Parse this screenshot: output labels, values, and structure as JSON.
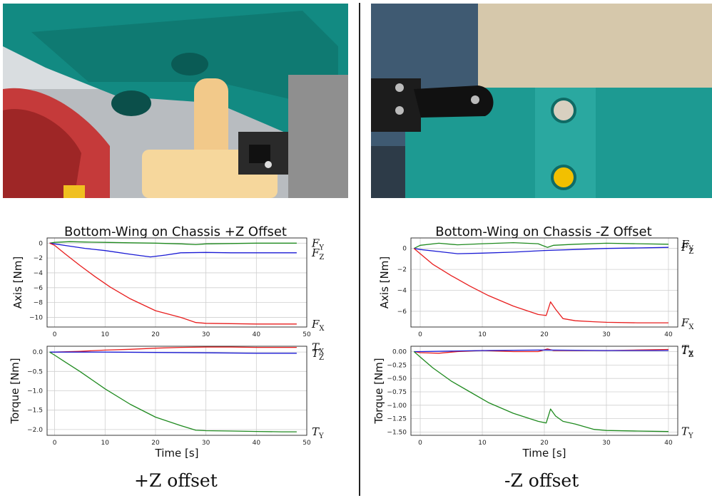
{
  "photos": {
    "left": "robot-gripper-photo-underside",
    "right": "robot-gripper-photo-topdown"
  },
  "captions": {
    "left": "+Z offset",
    "right": "-Z offset"
  },
  "colors": {
    "x": "#e81e1e",
    "y": "#1f8a1f",
    "z": "#1a1ad4",
    "grid": "#cfcfcf"
  },
  "chart_data": [
    {
      "type": "line",
      "title": "Bottom-Wing on Chassis +Z Offset",
      "xlabel": "Time [s]",
      "xlim": [
        -1.5,
        50
      ],
      "xticks": [
        0,
        10,
        20,
        30,
        40,
        50
      ],
      "grid": true,
      "subplots": [
        {
          "ylabel": "Axis [Nm]",
          "ylim": [
            -11.3,
            0.7
          ],
          "yticks": [
            0,
            -2,
            -4,
            -6,
            -8,
            -10
          ],
          "series": [
            {
              "name": "F_Y",
              "color": "green",
              "x": [
                -1,
                0,
                3,
                6,
                10,
                15,
                20,
                25,
                28,
                30,
                35,
                40,
                45,
                48
              ],
              "y": [
                0,
                0.1,
                0.2,
                0.15,
                0.1,
                0.05,
                0,
                -0.1,
                -0.2,
                -0.1,
                -0.05,
                0,
                0,
                0
              ]
            },
            {
              "name": "F_Z",
              "color": "blue",
              "x": [
                -1,
                0,
                3,
                6,
                10,
                15,
                19,
                22,
                25,
                30,
                35,
                40,
                45,
                48
              ],
              "y": [
                0,
                -0.1,
                -0.4,
                -0.7,
                -1.0,
                -1.5,
                -1.85,
                -1.6,
                -1.3,
                -1.25,
                -1.3,
                -1.3,
                -1.3,
                -1.3
              ]
            },
            {
              "name": "F_X",
              "color": "red",
              "x": [
                -1,
                0,
                2,
                5,
                8,
                11,
                15,
                20,
                25,
                28,
                30,
                35,
                40,
                45,
                48
              ],
              "y": [
                0,
                -0.3,
                -1.4,
                -3.0,
                -4.5,
                -5.9,
                -7.5,
                -9.1,
                -10.0,
                -10.7,
                -10.8,
                -10.85,
                -10.9,
                -10.9,
                -10.9
              ]
            }
          ],
          "labels": [
            {
              "text": "F",
              "sub": "Y",
              "series": 0
            },
            {
              "text": "F",
              "sub": "Z",
              "series": 1
            },
            {
              "text": "F",
              "sub": "X",
              "series": 2
            }
          ]
        },
        {
          "ylabel": "Torque [Nm]",
          "ylim": [
            -2.15,
            0.15
          ],
          "yticks": [
            0.0,
            -0.5,
            -1.0,
            -1.5,
            -2.0
          ],
          "yticklabels": [
            "0.0",
            "−0.5",
            "−1.0",
            "−1.5",
            "−2.0"
          ],
          "series": [
            {
              "name": "T_X",
              "color": "red",
              "x": [
                -1,
                0,
                5,
                10,
                15,
                20,
                25,
                30,
                35,
                40,
                45,
                48
              ],
              "y": [
                0,
                0,
                0.02,
                0.05,
                0.07,
                0.1,
                0.12,
                0.13,
                0.13,
                0.12,
                0.12,
                0.12
              ]
            },
            {
              "name": "T_Z",
              "color": "blue",
              "x": [
                -1,
                0,
                5,
                10,
                20,
                30,
                40,
                48
              ],
              "y": [
                0,
                0,
                0.0,
                0.0,
                -0.01,
                -0.02,
                -0.03,
                -0.03
              ]
            },
            {
              "name": "T_Y",
              "color": "green",
              "x": [
                -1,
                0,
                2,
                5,
                10,
                15,
                20,
                25,
                28,
                30,
                35,
                40,
                45,
                48
              ],
              "y": [
                0,
                -0.08,
                -0.25,
                -0.5,
                -0.95,
                -1.35,
                -1.68,
                -1.9,
                -2.02,
                -2.03,
                -2.04,
                -2.05,
                -2.06,
                -2.06
              ]
            }
          ],
          "labels": [
            {
              "text": "T",
              "sub": "X",
              "series": 0
            },
            {
              "text": "T",
              "sub": "Z",
              "series": 1
            },
            {
              "text": "T",
              "sub": "Y",
              "series": 2
            }
          ]
        }
      ]
    },
    {
      "type": "line",
      "title": "Bottom-Wing on Chassis -Z Offset",
      "xlabel": "Time [s]",
      "xlim": [
        -1.5,
        41.5
      ],
      "xticks": [
        0,
        10,
        20,
        30,
        40
      ],
      "grid": true,
      "subplots": [
        {
          "ylabel": "Axis [Nm]",
          "ylim": [
            -7.5,
            1.0
          ],
          "yticks": [
            0,
            -2,
            -4,
            -6
          ],
          "series": [
            {
              "name": "F_Y",
              "color": "green",
              "x": [
                -1,
                0,
                3,
                6,
                10,
                15,
                19,
                20.5,
                21.5,
                25,
                30,
                35,
                40
              ],
              "y": [
                0,
                0.3,
                0.5,
                0.35,
                0.45,
                0.55,
                0.45,
                0.1,
                0.3,
                0.4,
                0.5,
                0.45,
                0.4
              ]
            },
            {
              "name": "F_Z",
              "color": "blue",
              "x": [
                -1,
                0,
                3,
                6,
                10,
                15,
                20,
                25,
                30,
                35,
                40
              ],
              "y": [
                0,
                -0.1,
                -0.3,
                -0.5,
                -0.45,
                -0.35,
                -0.2,
                -0.1,
                0.0,
                0.05,
                0.1
              ]
            },
            {
              "name": "F_X",
              "color": "red",
              "x": [
                -1,
                0,
                2,
                5,
                8,
                11,
                15,
                19,
                20.3,
                21,
                21.8,
                23,
                25,
                28,
                30,
                35,
                40
              ],
              "y": [
                0,
                -0.5,
                -1.5,
                -2.6,
                -3.6,
                -4.5,
                -5.5,
                -6.3,
                -6.4,
                -5.1,
                -5.8,
                -6.7,
                -6.9,
                -7.0,
                -7.05,
                -7.1,
                -7.1
              ]
            }
          ],
          "labels": [
            {
              "text": "F",
              "sub": "Y",
              "series": 0
            },
            {
              "text": "F",
              "sub": "Z",
              "series": 1
            },
            {
              "text": "F",
              "sub": "X",
              "series": 2
            }
          ]
        },
        {
          "ylabel": "Torque [Nm]",
          "ylim": [
            -1.56,
            0.1
          ],
          "yticks": [
            0.0,
            -0.25,
            -0.5,
            -0.75,
            -1.0,
            -1.25,
            -1.5
          ],
          "yticklabels": [
            "0.00",
            "−0.25",
            "−0.50",
            "−0.75",
            "−1.00",
            "−1.25",
            "−1.50"
          ],
          "series": [
            {
              "name": "T_X",
              "color": "red",
              "x": [
                -1,
                0,
                3,
                6,
                10,
                15,
                19,
                20.5,
                21.5,
                25,
                30,
                35,
                40
              ],
              "y": [
                0,
                -0.02,
                -0.03,
                0.0,
                0.02,
                0.0,
                0.0,
                0.05,
                0.02,
                0.02,
                0.02,
                0.03,
                0.04
              ]
            },
            {
              "name": "T_Z",
              "color": "blue",
              "x": [
                -1,
                0,
                5,
                10,
                20,
                30,
                40
              ],
              "y": [
                0,
                0,
                0.01,
                0.02,
                0.03,
                0.02,
                0.02
              ]
            },
            {
              "name": "T_Y",
              "color": "green",
              "x": [
                -1,
                0,
                2,
                5,
                8,
                11,
                15,
                19,
                20.3,
                21,
                21.8,
                23,
                25,
                28,
                30,
                35,
                40
              ],
              "y": [
                0,
                -0.1,
                -0.3,
                -0.55,
                -0.75,
                -0.95,
                -1.15,
                -1.3,
                -1.33,
                -1.07,
                -1.2,
                -1.3,
                -1.35,
                -1.45,
                -1.47,
                -1.48,
                -1.49
              ]
            }
          ],
          "labels": [
            {
              "text": "T",
              "sub": "X",
              "series": 0
            },
            {
              "text": "T",
              "sub": "Z",
              "series": 1
            },
            {
              "text": "T",
              "sub": "Y",
              "series": 2
            }
          ]
        }
      ]
    }
  ]
}
